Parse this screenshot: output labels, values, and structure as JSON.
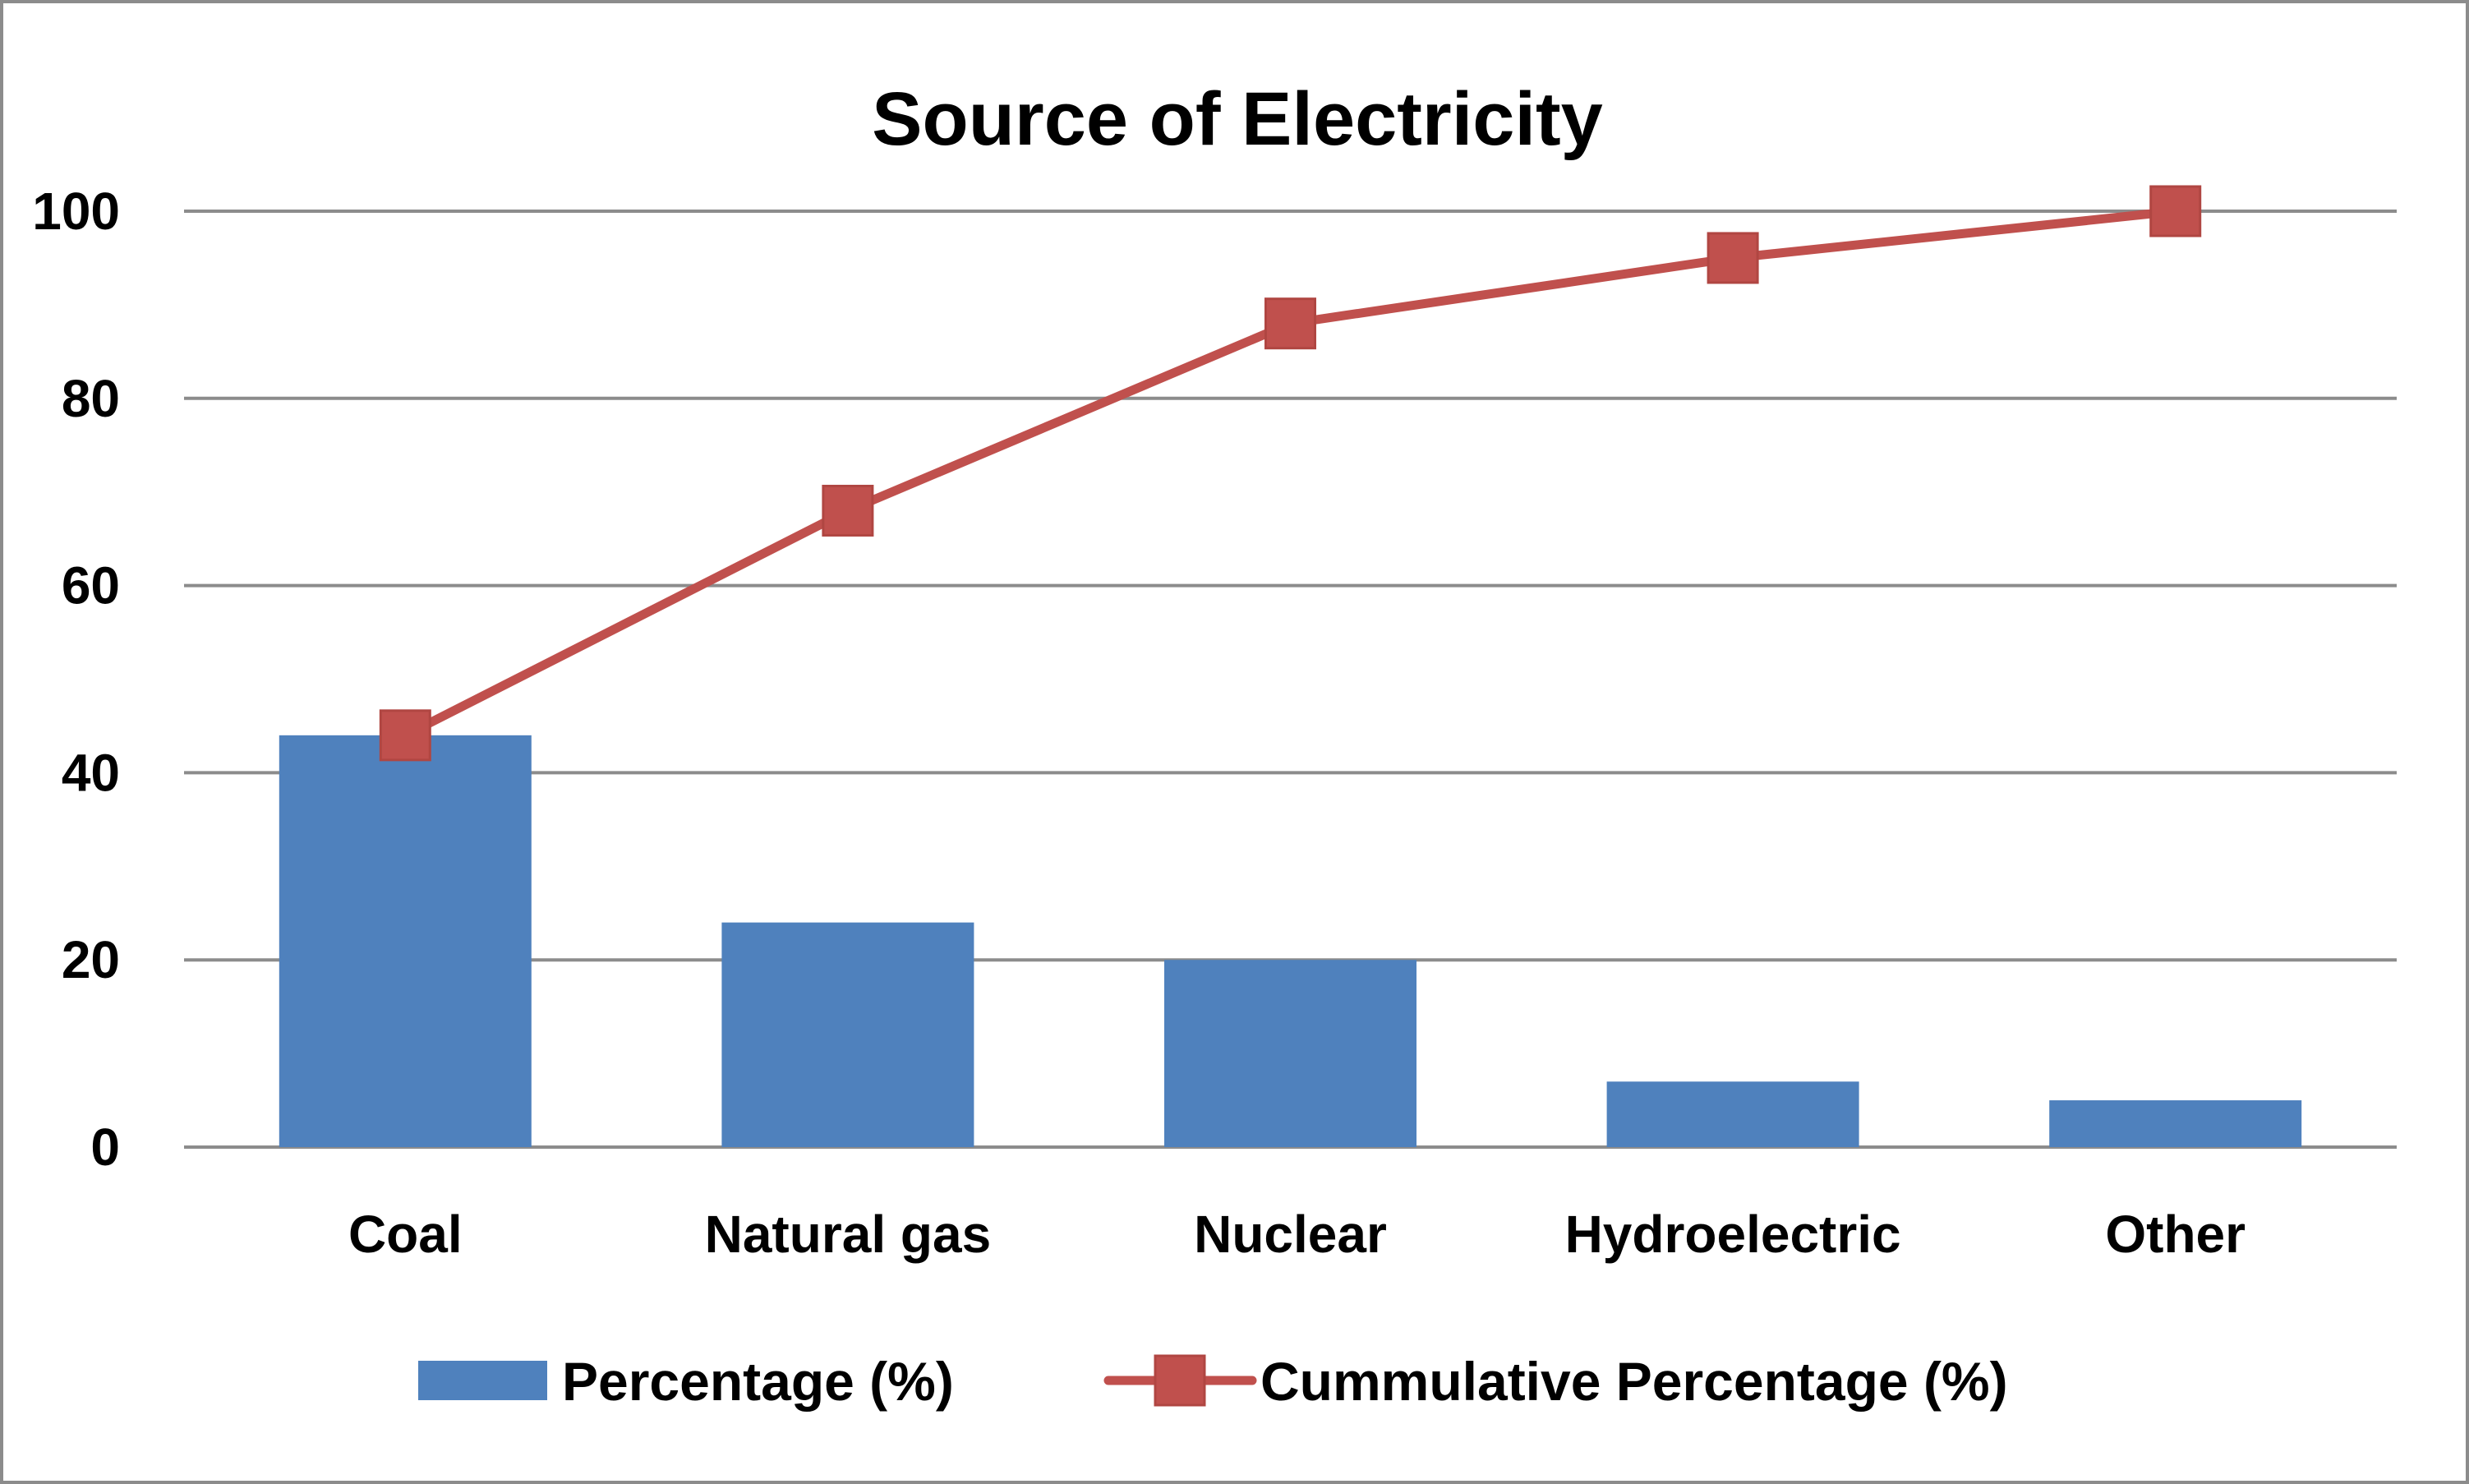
{
  "chart_data": {
    "type": "bar",
    "title": "Source of Electricity",
    "xlabel": "",
    "ylabel": "",
    "categories": [
      "Coal",
      "Natural gas",
      "Nuclear",
      "Hydroelectric",
      "Other"
    ],
    "ylim": [
      0,
      100
    ],
    "yticks": [
      0,
      20,
      40,
      60,
      80,
      100
    ],
    "ytick_labels": [
      "0",
      "20",
      "40",
      "60",
      "80",
      "100"
    ],
    "grid": true,
    "legend_placement": "bottom",
    "series": [
      {
        "name": "Percentage (%)",
        "kind": "bar",
        "color": "#4f81bd",
        "values": [
          44,
          24,
          20,
          7,
          5
        ]
      },
      {
        "name": "Cummulative Percentage (%)",
        "kind": "line",
        "marker": "square",
        "color": "#c0504d",
        "values": [
          44,
          68,
          88,
          95,
          100
        ]
      }
    ]
  }
}
